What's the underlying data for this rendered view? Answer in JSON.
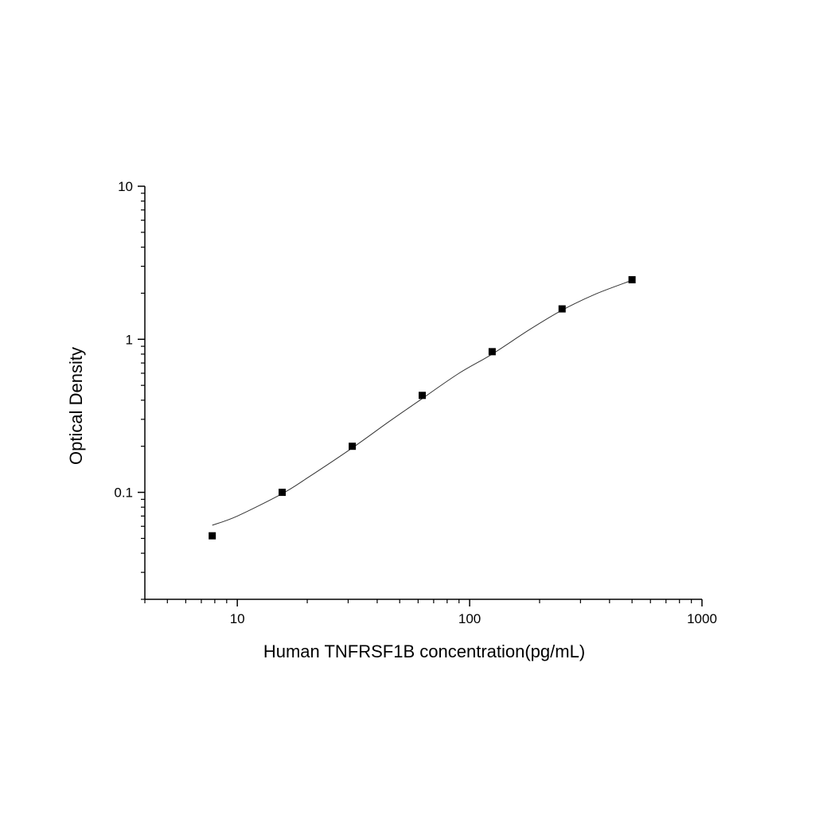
{
  "chart_data": {
    "type": "scatter",
    "title": "",
    "xlabel": "Human TNFRSF1B concentration(pg/mL)",
    "ylabel": "Optical Density",
    "x_scale": "log",
    "y_scale": "log",
    "xlim": [
      4,
      1000
    ],
    "ylim": [
      0.02,
      10
    ],
    "x_ticks": [
      10,
      100,
      1000
    ],
    "x_tick_labels": [
      "10",
      "100",
      "1000"
    ],
    "y_ticks": [
      0.1,
      1,
      10
    ],
    "y_tick_labels": [
      "0.1",
      "1",
      "10"
    ],
    "grid": false,
    "legend": "none",
    "series": [
      {
        "marker": "square",
        "x": [
          7.8,
          15.6,
          31.25,
          62.5,
          125,
          250,
          500
        ],
        "y": [
          0.052,
          0.1,
          0.2,
          0.43,
          0.83,
          1.58,
          2.45
        ]
      }
    ],
    "fit_curve": {
      "style": "thin-line",
      "x": [
        7.8,
        10,
        15.6,
        20,
        31.25,
        45,
        62.5,
        90,
        125,
        180,
        250,
        350,
        500
      ],
      "y": [
        0.061,
        0.07,
        0.098,
        0.124,
        0.195,
        0.29,
        0.41,
        0.6,
        0.8,
        1.15,
        1.55,
        1.98,
        2.43
      ]
    },
    "colors": {
      "axis": "#000000",
      "marker": "#000000",
      "curve": "#333333"
    }
  }
}
